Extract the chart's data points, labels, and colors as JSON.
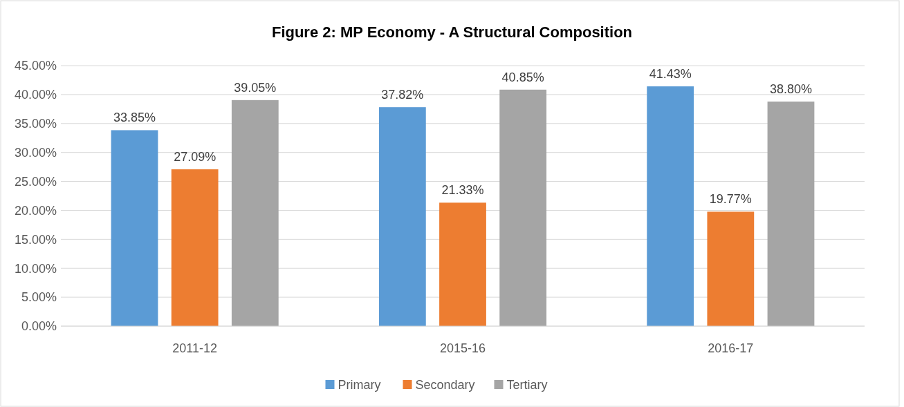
{
  "chart_data": {
    "type": "bar",
    "title": "Figure 2: MP Economy - A Structural Composition",
    "categories": [
      "2011-12",
      "2015-16",
      "2016-17"
    ],
    "series": [
      {
        "name": "Primary",
        "color": "#5b9bd5",
        "values": [
          33.85,
          37.82,
          41.43
        ],
        "value_labels": [
          "33.85%",
          "37.82%",
          "41.43%"
        ]
      },
      {
        "name": "Secondary",
        "color": "#ed7d31",
        "values": [
          27.09,
          21.33,
          19.77
        ],
        "value_labels": [
          "27.09%",
          "21.33%",
          "19.77%"
        ]
      },
      {
        "name": "Tertiary",
        "color": "#a5a5a5",
        "values": [
          39.05,
          40.85,
          38.8
        ],
        "value_labels": [
          "39.05%",
          "40.85%",
          "38.80%"
        ]
      }
    ],
    "ylim": [
      0,
      45
    ],
    "yticks": [
      {
        "value": 0,
        "label": "0.00%"
      },
      {
        "value": 5,
        "label": "5.00%"
      },
      {
        "value": 10,
        "label": "10.00%"
      },
      {
        "value": 15,
        "label": "15.00%"
      },
      {
        "value": 20,
        "label": "20.00%"
      },
      {
        "value": 25,
        "label": "25.00%"
      },
      {
        "value": 30,
        "label": "30.00%"
      },
      {
        "value": 35,
        "label": "35.00%"
      },
      {
        "value": 40,
        "label": "40.00%"
      },
      {
        "value": 45,
        "label": "45.00%"
      }
    ],
    "grid": "y",
    "legend": "bottom"
  }
}
